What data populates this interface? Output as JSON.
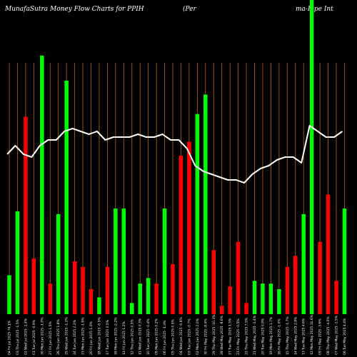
{
  "title": {
    "left": "MunafaSutra  Money Flow  Charts for PPIH",
    "middle": "(Per",
    "right": "ma-Pipe   Int"
  },
  "colors": {
    "background": "#000000",
    "gridline": "#b8680b",
    "buy": "#00ff00",
    "sell": "#ff0000",
    "price_line": "#ffffff"
  },
  "chart_data": {
    "type": "bar",
    "title": "MunafaSutra  Money Flow  Charts for PPIH (Perma-Pipe Int",
    "categories": [
      "04 Fri Jul 2025 74.1%",
      "03 Thu Jul 2025 -1.5%",
      "02 Wed Jul 2025 -1.4%",
      "01 Tue Jul 2025 -0.9%",
      "30 Mon Jun 2025 -1.0%",
      "27 Fri Jun 2025 1.5%",
      "26 Thu Jun 2025 1.8%",
      "25 Wed Jun 2025 -1.3%",
      "24 Tue Jun 2025 2.2%",
      "23 Mon Jun 2025 -1.6%",
      "20 Fri Jun 2025 1.0%",
      "18 Wed Jun 2025 -0.5%",
      "17 Tue Jun 2025 0.5%",
      "16 Mon Jun 2025 -2.2%",
      "13 Fri Jun 2025 1.2%",
      "12 Thu Jun 2025 0.5%",
      "11 Wed Jun 2025 0.3%",
      "10 Tue Jun 2025 -0.4%",
      "09 Mon Jun 2025 0.2%",
      "06 Fri Jun 2025 -1.4%",
      "05 Thu Jun 2025 0.5%",
      "04 Wed Jun 2025 -0.8%",
      "03 Tue Jun 2025 -0.7%",
      "02 Mon Jun 2025 2.0%",
      "30 Fri May 2025 -8.4%",
      "29 Thu May 2025 -10.3%",
      "28 Wed May 2025 -8.6%",
      "27 Tue May 2025 1.5%",
      "23 Fri May 2025 -0.5%",
      "22 Thu May 2025 7.5%",
      "21 Wed May 2025 -1.4%",
      "20 Tue May 2025 0.8%",
      "19 Mon May 2025 1.7%",
      "16 Fri May 2025 -1.0%",
      "15 Thu May 2025 -1.7%",
      "14 Wed May 2025 2.8%",
      "13 Tue May 2025 4.6%",
      "12 Mon May 2025 11.6%",
      "09 Fri May 2025 -3.6%",
      "08 Thu May 2025 -4.0%",
      "07 Wed May 2025 -1.5%",
      "06 Tue May 2025 4.4%"
    ],
    "bar_colors": [
      "green",
      "green",
      "red",
      "red",
      "green",
      "red",
      "green",
      "green",
      "red",
      "red",
      "red",
      "green",
      "red",
      "green",
      "green",
      "green",
      "green",
      "green",
      "red",
      "green",
      "red",
      "red",
      "red",
      "green",
      "green",
      "red",
      "red",
      "red",
      "red",
      "red",
      "green",
      "green",
      "green",
      "green",
      "red",
      "red",
      "green",
      "green",
      "red",
      "red",
      "red",
      "green"
    ],
    "series": [
      {
        "name": "Money Flow",
        "values": [
          14,
          37,
          71,
          20,
          93,
          11,
          36,
          84,
          19,
          17,
          9,
          6,
          17,
          38,
          38,
          4,
          11,
          13,
          11,
          38,
          18,
          57,
          62,
          72,
          79,
          23,
          3,
          10,
          26,
          4,
          12,
          11,
          11,
          9,
          17,
          21,
          36,
          113,
          26,
          43,
          12,
          38
        ]
      },
      {
        "name": "Price",
        "values": [
          56,
          59,
          56,
          55,
          59,
          61,
          61,
          64,
          65,
          64,
          63,
          64,
          61,
          62,
          62,
          62,
          63,
          62,
          62,
          63,
          61,
          61,
          58,
          52,
          50,
          49,
          48,
          47,
          47,
          46,
          49,
          51,
          52,
          54,
          55,
          55,
          53,
          66,
          64,
          62,
          62,
          64
        ]
      }
    ],
    "ylim": [
      0,
      113
    ],
    "grid": true,
    "xlabel": "",
    "ylabel": ""
  }
}
